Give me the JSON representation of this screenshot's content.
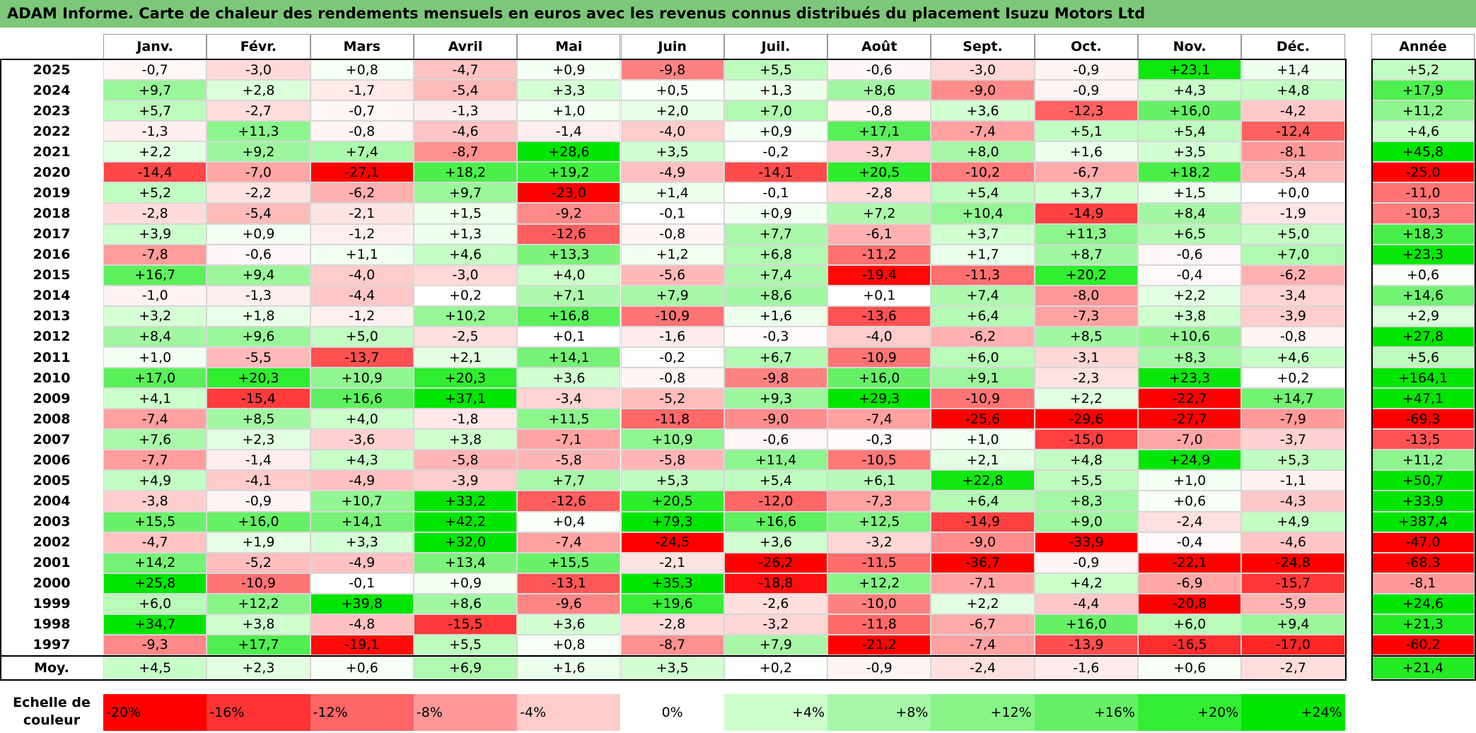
{
  "title": "ADAM Informe. Carte de chaleur des rendements mensuels en euros avec les revenus connus distribués du placement Isuzu Motors Ltd",
  "chart_data": {
    "type": "heatmap",
    "title": "ADAM Informe. Carte de chaleur des rendements mensuels en euros avec les revenus connus distribués du placement Isuzu Motors Ltd",
    "months": [
      "Janv.",
      "Févr.",
      "Mars",
      "Avril",
      "Mai",
      "Juin",
      "Juil.",
      "Août",
      "Sept.",
      "Oct.",
      "Nov.",
      "Déc."
    ],
    "year_column_label": "Année",
    "rows": [
      {
        "year": "2025",
        "values": [
          "-0,7",
          "-3,0",
          "+0,8",
          "-4,7",
          "+0,9",
          "-9,8",
          "+5,5",
          "-0,6",
          "-3,0",
          "-0,9",
          "+23,1",
          "+1,4"
        ],
        "annual": "+5,2"
      },
      {
        "year": "2024",
        "values": [
          "+9,7",
          "+2,8",
          "-1,7",
          "-5,4",
          "+3,3",
          "+0,5",
          "+1,3",
          "+8,6",
          "-9,0",
          "-0,9",
          "+4,3",
          "+4,8"
        ],
        "annual": "+17,9"
      },
      {
        "year": "2023",
        "values": [
          "+5,7",
          "-2,7",
          "-0,7",
          "-1,3",
          "+1,0",
          "+2,0",
          "+7,0",
          "-0,8",
          "+3,6",
          "-12,3",
          "+16,0",
          "-4,2"
        ],
        "annual": "+11,2"
      },
      {
        "year": "2022",
        "values": [
          "-1,3",
          "+11,3",
          "-0,8",
          "-4,6",
          "-1,4",
          "-4,0",
          "+0,9",
          "+17,1",
          "-7,4",
          "+5,1",
          "+5,4",
          "-12,4"
        ],
        "annual": "+4,6"
      },
      {
        "year": "2021",
        "values": [
          "+2,2",
          "+9,2",
          "+7,4",
          "-8,7",
          "+28,6",
          "+3,5",
          "-0,2",
          "-3,7",
          "+8,0",
          "+1,6",
          "+3,5",
          "-8,1"
        ],
        "annual": "+45,8"
      },
      {
        "year": "2020",
        "values": [
          "-14,4",
          "-7,0",
          "-27,1",
          "+18,2",
          "+19,2",
          "-4,9",
          "-14,1",
          "+20,5",
          "-10,2",
          "-6,7",
          "+18,2",
          "-5,4"
        ],
        "annual": "-25,0"
      },
      {
        "year": "2019",
        "values": [
          "+5,2",
          "-2,2",
          "-6,2",
          "+9,7",
          "-23,0",
          "+1,4",
          "-0,1",
          "-2,8",
          "+5,4",
          "+3,7",
          "+1,5",
          "+0,0"
        ],
        "annual": "-11,0"
      },
      {
        "year": "2018",
        "values": [
          "-2,8",
          "-5,4",
          "-2,1",
          "+1,5",
          "-9,2",
          "-0,1",
          "+0,9",
          "+7,2",
          "+10,4",
          "-14,9",
          "+8,4",
          "-1,9"
        ],
        "annual": "-10,3"
      },
      {
        "year": "2017",
        "values": [
          "+3,9",
          "+0,9",
          "-1,2",
          "+1,3",
          "-12,6",
          "-0,8",
          "+7,7",
          "-6,1",
          "+3,7",
          "+11,3",
          "+6,5",
          "+5,0"
        ],
        "annual": "+18,3"
      },
      {
        "year": "2016",
        "values": [
          "-7,8",
          "-0,6",
          "+1,1",
          "+4,6",
          "+13,3",
          "+1,2",
          "+6,8",
          "-11,2",
          "+1,7",
          "+8,7",
          "-0,6",
          "+7,0"
        ],
        "annual": "+23,3"
      },
      {
        "year": "2015",
        "values": [
          "+16,7",
          "+9,4",
          "-4,0",
          "-3,0",
          "+4,0",
          "-5,6",
          "+7,4",
          "-19,4",
          "-11,3",
          "+20,2",
          "-0,4",
          "-6,2"
        ],
        "annual": "+0,6"
      },
      {
        "year": "2014",
        "values": [
          "-1,0",
          "-1,3",
          "-4,4",
          "+0,2",
          "+7,1",
          "+7,9",
          "+8,6",
          "+0,1",
          "+7,4",
          "-8,0",
          "+2,2",
          "-3,4"
        ],
        "annual": "+14,6"
      },
      {
        "year": "2013",
        "values": [
          "+3,2",
          "+1,8",
          "-1,2",
          "+10,2",
          "+16,8",
          "-10,9",
          "+1,6",
          "-13,6",
          "+6,4",
          "-7,3",
          "+3,8",
          "-3,9"
        ],
        "annual": "+2,9"
      },
      {
        "year": "2012",
        "values": [
          "+8,4",
          "+9,6",
          "+5,0",
          "-2,5",
          "+0,1",
          "-1,6",
          "-0,3",
          "-4,0",
          "-6,2",
          "+8,5",
          "+10,6",
          "-0,8"
        ],
        "annual": "+27,8"
      },
      {
        "year": "2011",
        "values": [
          "+1,0",
          "-5,5",
          "-13,7",
          "+2,1",
          "+14,1",
          "-0,2",
          "+6,7",
          "-10,9",
          "+6,0",
          "-3,1",
          "+8,3",
          "+4,6"
        ],
        "annual": "+5,6"
      },
      {
        "year": "2010",
        "values": [
          "+17,0",
          "+20,3",
          "+10,9",
          "+20,3",
          "+3,6",
          "-0,8",
          "-9,8",
          "+16,0",
          "+9,1",
          "-2,3",
          "+23,3",
          "+0,2"
        ],
        "annual": "+164,1"
      },
      {
        "year": "2009",
        "values": [
          "+4,1",
          "-15,4",
          "+16,6",
          "+37,1",
          "-3,4",
          "-5,2",
          "+9,3",
          "+29,3",
          "-10,9",
          "+2,2",
          "-22,7",
          "+14,7"
        ],
        "annual": "+47,1"
      },
      {
        "year": "2008",
        "values": [
          "-7,4",
          "+8,5",
          "+4,0",
          "-1,8",
          "+11,5",
          "-11,8",
          "-9,0",
          "-7,4",
          "-25,6",
          "-29,6",
          "-27,7",
          "-7,9"
        ],
        "annual": "-69,3"
      },
      {
        "year": "2007",
        "values": [
          "+7,6",
          "+2,3",
          "-3,6",
          "+3,8",
          "-7,1",
          "+10,9",
          "-0,6",
          "-0,3",
          "+1,0",
          "-15,0",
          "-7,0",
          "-3,7"
        ],
        "annual": "-13,5"
      },
      {
        "year": "2006",
        "values": [
          "-7,7",
          "-1,4",
          "+4,3",
          "-5,8",
          "-5,8",
          "-5,8",
          "+11,4",
          "-10,5",
          "+2,1",
          "+4,8",
          "+24,9",
          "+5,3"
        ],
        "annual": "+11,2"
      },
      {
        "year": "2005",
        "values": [
          "+4,9",
          "-4,1",
          "-4,9",
          "-3,9",
          "+7,7",
          "+5,3",
          "+5,4",
          "+6,1",
          "+22,8",
          "+5,5",
          "+1,0",
          "-1,1"
        ],
        "annual": "+50,7"
      },
      {
        "year": "2004",
        "values": [
          "-3,8",
          "-0,9",
          "+10,7",
          "+33,2",
          "-12,6",
          "+20,5",
          "-12,0",
          "-7,3",
          "+6,4",
          "+8,3",
          "+0,6",
          "-4,3"
        ],
        "annual": "+33,9"
      },
      {
        "year": "2003",
        "values": [
          "+15,5",
          "+16,0",
          "+14,1",
          "+42,2",
          "+0,4",
          "+79,3",
          "+16,6",
          "+12,5",
          "-14,9",
          "+9,0",
          "-2,4",
          "+4,9"
        ],
        "annual": "+387,4"
      },
      {
        "year": "2002",
        "values": [
          "-4,7",
          "+1,9",
          "+3,3",
          "+32,0",
          "-7,4",
          "-24,5",
          "+3,6",
          "-3,2",
          "-9,0",
          "-33,9",
          "-0,4",
          "-4,6"
        ],
        "annual": "-47,0"
      },
      {
        "year": "2001",
        "values": [
          "+14,2",
          "-5,2",
          "-4,9",
          "+13,4",
          "+15,5",
          "-2,1",
          "-26,2",
          "-11,5",
          "-36,7",
          "-0,9",
          "-22,1",
          "-24,8"
        ],
        "annual": "-68,3"
      },
      {
        "year": "2000",
        "values": [
          "+25,8",
          "-10,9",
          "-0,1",
          "+0,9",
          "-13,1",
          "+35,3",
          "-18,8",
          "+12,2",
          "-7,1",
          "+4,2",
          "-6,9",
          "-15,7"
        ],
        "annual": "-8,1"
      },
      {
        "year": "1999",
        "values": [
          "+6,0",
          "+12,2",
          "+39,8",
          "+8,6",
          "-9,6",
          "+19,6",
          "-2,6",
          "-10,0",
          "+2,2",
          "-4,4",
          "-20,8",
          "-5,9"
        ],
        "annual": "+24,6"
      },
      {
        "year": "1998",
        "values": [
          "+34,7",
          "+3,8",
          "-4,8",
          "-15,5",
          "+3,6",
          "-2,8",
          "-3,2",
          "-11,8",
          "-6,7",
          "+16,0",
          "+6,0",
          "+9,4"
        ],
        "annual": "+21,3"
      },
      {
        "year": "1997",
        "values": [
          "-9,3",
          "+17,7",
          "-19,1",
          "+5,5",
          "+0,8",
          "-8,7",
          "+7,9",
          "-21,2",
          "-7,4",
          "-13,9",
          "-16,5",
          "-17,0"
        ],
        "annual": "-60,2"
      }
    ],
    "average": {
      "label": "Moy.",
      "values": [
        "+4,5",
        "+2,3",
        "+0,6",
        "+6,9",
        "+1,6",
        "+3,5",
        "+0,2",
        "-0,9",
        "-2,4",
        "-1,6",
        "+0,6",
        "-2,7"
      ],
      "annual": "+21,4"
    },
    "color_scale": {
      "label": "Echelle de couleur",
      "stops": [
        {
          "label": "-20%",
          "value": -20,
          "color": "#ff0000"
        },
        {
          "label": "-16%",
          "value": -16,
          "color": "#ff3333"
        },
        {
          "label": "-12%",
          "value": -12,
          "color": "#ff6666"
        },
        {
          "label": "-8%",
          "value": -8,
          "color": "#ff9999"
        },
        {
          "label": "-4%",
          "value": -4,
          "color": "#ffcccc"
        },
        {
          "label": "0%",
          "value": 0,
          "color": "#ffffff"
        },
        {
          "label": "+4%",
          "value": 4,
          "color": "#ccffcc"
        },
        {
          "label": "+8%",
          "value": 8,
          "color": "#a6f7a6"
        },
        {
          "label": "+12%",
          "value": 12,
          "color": "#88f588"
        },
        {
          "label": "+16%",
          "value": 16,
          "color": "#66f066"
        },
        {
          "label": "+20%",
          "value": 20,
          "color": "#33ee33"
        },
        {
          "label": "+24%",
          "value": 24,
          "color": "#00e600"
        }
      ]
    }
  }
}
